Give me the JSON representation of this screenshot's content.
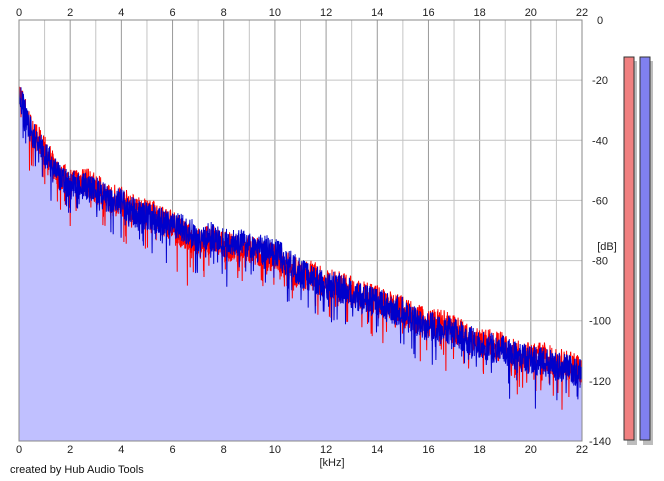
{
  "credit": "created by Hub Audio Tools",
  "colors": {
    "background": "#ffffff",
    "fill": "#c0c0ff",
    "grid_major": "#999999",
    "grid_minor": "#c4c4c4",
    "left_channel": "#ff0000",
    "right_channel": "#0000cc",
    "meter_left": "#f08080",
    "meter_right": "#8080f0"
  },
  "chart_data": {
    "type": "line",
    "title": "",
    "xlabel": "[kHz]",
    "ylabel": "[dB]",
    "xlim": [
      0,
      22
    ],
    "ylim": [
      -140,
      0
    ],
    "x_ticks": [
      0,
      2,
      4,
      6,
      8,
      10,
      12,
      14,
      16,
      18,
      20,
      22
    ],
    "y_ticks": [
      0,
      -20,
      -40,
      -60,
      -80,
      -100,
      -120,
      -140
    ],
    "grid": true,
    "x_ticks_top_and_bottom": true,
    "y_ticks_side": "right",
    "filled_area_under_curve": true,
    "series": [
      {
        "color": "#ff0000",
        "points": [
          [
            0.0,
            -24
          ],
          [
            0.5,
            -37
          ],
          [
            1.0,
            -43
          ],
          [
            1.5,
            -51
          ],
          [
            2.0,
            -54
          ],
          [
            2.5,
            -53
          ],
          [
            3.0,
            -56
          ],
          [
            3.5,
            -59
          ],
          [
            4.0,
            -60
          ],
          [
            4.5,
            -63
          ],
          [
            5.0,
            -64
          ],
          [
            5.5,
            -66
          ],
          [
            6.0,
            -68
          ],
          [
            6.5,
            -72
          ],
          [
            7.0,
            -74
          ],
          [
            7.5,
            -73
          ],
          [
            8.0,
            -75
          ],
          [
            8.5,
            -76
          ],
          [
            9.0,
            -76
          ],
          [
            9.5,
            -78
          ],
          [
            10.0,
            -79
          ],
          [
            10.5,
            -82
          ],
          [
            11.0,
            -85
          ],
          [
            11.5,
            -85
          ],
          [
            12.0,
            -88
          ],
          [
            12.5,
            -88
          ],
          [
            13.0,
            -90
          ],
          [
            13.5,
            -92
          ],
          [
            14.0,
            -93
          ],
          [
            14.5,
            -95
          ],
          [
            15.0,
            -96
          ],
          [
            15.5,
            -99
          ],
          [
            16.0,
            -101
          ],
          [
            16.5,
            -101
          ],
          [
            17.0,
            -103
          ],
          [
            17.5,
            -105
          ],
          [
            18.0,
            -107
          ],
          [
            18.5,
            -108
          ],
          [
            19.0,
            -109
          ],
          [
            19.5,
            -111
          ],
          [
            20.0,
            -112
          ],
          [
            20.5,
            -112
          ],
          [
            21.0,
            -114
          ],
          [
            21.5,
            -115
          ],
          [
            22.0,
            -117
          ]
        ]
      },
      {
        "color": "#0000cc",
        "points": [
          [
            0.0,
            -25
          ],
          [
            0.5,
            -38
          ],
          [
            1.0,
            -44
          ],
          [
            1.5,
            -52
          ],
          [
            2.0,
            -55
          ],
          [
            2.5,
            -55
          ],
          [
            3.0,
            -57
          ],
          [
            3.5,
            -60
          ],
          [
            4.0,
            -61
          ],
          [
            4.5,
            -64
          ],
          [
            5.0,
            -65
          ],
          [
            5.5,
            -67
          ],
          [
            6.0,
            -67
          ],
          [
            6.5,
            -70
          ],
          [
            7.0,
            -72
          ],
          [
            7.5,
            -72
          ],
          [
            8.0,
            -74
          ],
          [
            8.5,
            -74
          ],
          [
            9.0,
            -75
          ],
          [
            9.5,
            -76
          ],
          [
            10.0,
            -77
          ],
          [
            10.5,
            -81
          ],
          [
            11.0,
            -84
          ],
          [
            11.5,
            -86
          ],
          [
            12.0,
            -88
          ],
          [
            12.5,
            -89
          ],
          [
            13.0,
            -91
          ],
          [
            13.5,
            -93
          ],
          [
            14.0,
            -94
          ],
          [
            14.5,
            -96
          ],
          [
            15.0,
            -97
          ],
          [
            15.5,
            -100
          ],
          [
            16.0,
            -102
          ],
          [
            16.5,
            -102
          ],
          [
            17.0,
            -104
          ],
          [
            17.5,
            -106
          ],
          [
            18.0,
            -108
          ],
          [
            18.5,
            -109
          ],
          [
            19.0,
            -110
          ],
          [
            19.5,
            -112
          ],
          [
            20.0,
            -113
          ],
          [
            20.5,
            -114
          ],
          [
            21.0,
            -115
          ],
          [
            21.5,
            -116
          ],
          [
            22.0,
            -118
          ]
        ]
      }
    ]
  },
  "meters": [
    {
      "color": "#f08080",
      "level": 0.0
    },
    {
      "color": "#8080f0",
      "level": 0.0
    }
  ]
}
